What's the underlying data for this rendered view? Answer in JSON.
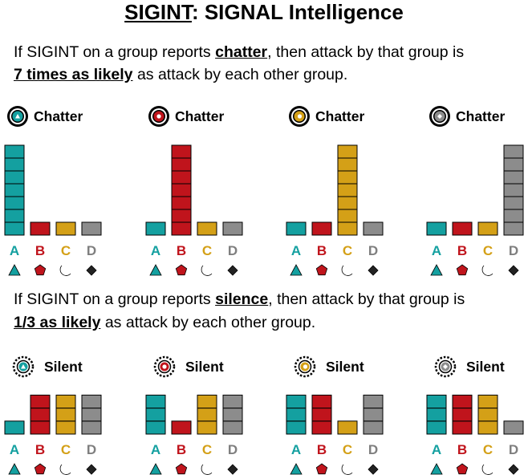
{
  "title": {
    "highlight": "SIGINT",
    "rest": ": SIGNAL Intelligence"
  },
  "rule_chatter": {
    "part1": "If SIGINT on a group reports ",
    "keyword": "chatter",
    "part2": ", then attack by that group is",
    "emphasis": "7 times as likely",
    "part3": " as attack by each other group."
  },
  "rule_silence": {
    "part1": "If SIGINT on a group reports ",
    "keyword": "silence",
    "part2": ", then attack by that group is",
    "emphasis": "1/3 as likely",
    "part3": " as attack by each other group."
  },
  "colors": {
    "A": "#14a0a0",
    "B": "#c0141c",
    "C": "#d4a017",
    "D": "#8c8c8c"
  },
  "groups": [
    {
      "letter": "A",
      "shape": "triangle-icon"
    },
    {
      "letter": "B",
      "shape": "pentagon-icon"
    },
    {
      "letter": "C",
      "shape": "crescent-icon"
    },
    {
      "letter": "D",
      "shape": "diamond-icon"
    }
  ],
  "chatter_panels": [
    {
      "label": "Chatter",
      "group": "A",
      "units": [
        7,
        1,
        1,
        1
      ]
    },
    {
      "label": "Chatter",
      "group": "B",
      "units": [
        1,
        7,
        1,
        1
      ]
    },
    {
      "label": "Chatter",
      "group": "C",
      "units": [
        1,
        1,
        7,
        1
      ]
    },
    {
      "label": "Chatter",
      "group": "D",
      "units": [
        1,
        1,
        1,
        7
      ]
    }
  ],
  "silent_panels": [
    {
      "label": "Silent",
      "group": "A",
      "units": [
        1,
        3,
        3,
        3
      ]
    },
    {
      "label": "Silent",
      "group": "B",
      "units": [
        3,
        1,
        3,
        3
      ]
    },
    {
      "label": "Silent",
      "group": "C",
      "units": [
        3,
        3,
        1,
        3
      ]
    },
    {
      "label": "Silent",
      "group": "D",
      "units": [
        3,
        3,
        3,
        1
      ]
    }
  ]
}
